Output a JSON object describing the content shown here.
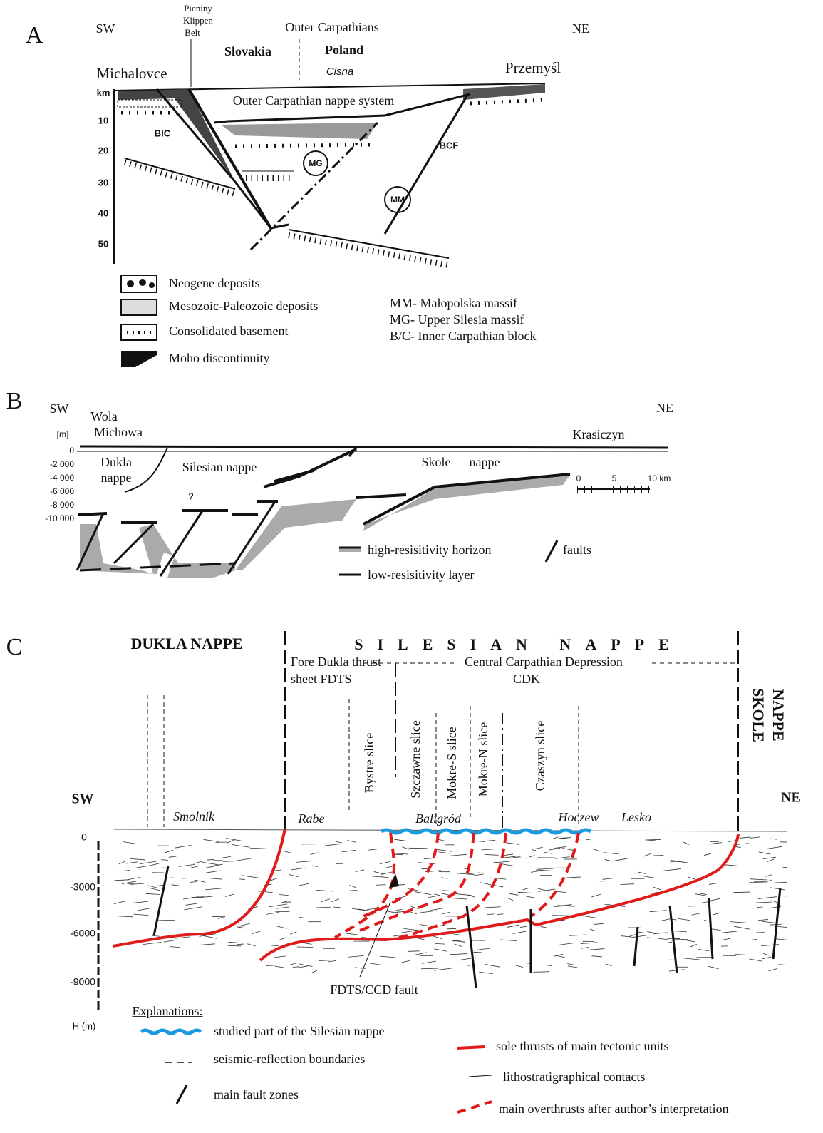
{
  "panel_a": {
    "label": "A",
    "sw": "SW",
    "ne": "NE",
    "pieniny": [
      "Pieniny",
      "Klippen",
      "Belt"
    ],
    "outer_carpathians": "Outer Carpathians",
    "slovakia": "Slovakia",
    "poland": "Poland",
    "cisna": "Cisna",
    "michalovce": "Michalovce",
    "przemysl": "Przemyśl",
    "depth_unit": "km",
    "depths": [
      "10",
      "20",
      "30",
      "40",
      "50"
    ],
    "nappe_system": "Outer Carpathian nappe system",
    "bic": "BIC",
    "bcf": "BCF",
    "mg": "MG",
    "mm": "MM",
    "legend": [
      "Neogene deposits",
      "Mesozoic-Paleozoic deposits",
      "Consolidated basement",
      "Moho discontinuity"
    ],
    "abbreviations": [
      "MM- Małopolska massif",
      "MG- Upper Silesia massif",
      "B/C- Inner Carpathian block"
    ]
  },
  "panel_b": {
    "label": "B",
    "sw": "SW",
    "ne": "NE",
    "wola_michowa": [
      "Wola",
      "Michowa"
    ],
    "unit": "[m]",
    "krasiczyn": "Krasiczyn",
    "depths": [
      "0",
      "-2 000",
      "-4 000",
      "-6 000",
      "-8 000",
      "-10 000"
    ],
    "dukla_nappe": [
      "Dukla",
      "nappe"
    ],
    "silesian_nappe": "Silesian  nappe",
    "skole_nappe": [
      "Skole",
      "nappe"
    ],
    "question": "?",
    "scale": [
      "0",
      "5",
      "10 km"
    ],
    "legend": [
      "high-resisitivity horizon",
      "low-resisitivity layer",
      "faults"
    ]
  },
  "panel_c": {
    "label": "C",
    "dukla_nappe": "DUKLA  NAPPE",
    "silesian_nappe": "SILESIAN NAPPE",
    "fdts": [
      "Fore Dukla thrust",
      "sheet FDTS"
    ],
    "ccd": [
      "Central Carpathian Depression",
      "CDK"
    ],
    "skole_nappe": [
      "SKOLE",
      "NAPPE"
    ],
    "slices": [
      "Bystre slice",
      "Szczawne slice",
      "Mokre-S slice",
      "Mokre-N slice",
      "Czaszyn slice"
    ],
    "sw": "SW",
    "ne": "NE",
    "places": [
      "Smolnik",
      "Rabe",
      "Baligród",
      "Hoczew",
      "Lesko"
    ],
    "depths": [
      "0",
      "-3000",
      "-6000",
      "-9000"
    ],
    "depth_unit": "H (m)",
    "fault_label": "FDTS/CCD fault",
    "explanations": "Explanations:",
    "legend": [
      "studied part  of the Silesian nappe",
      "seismic-reflection boundaries",
      "main fault zones",
      "sole thrusts of main tectonic units",
      "lithostratigraphical contacts",
      "main overthrusts after author’s interpretation"
    ]
  }
}
